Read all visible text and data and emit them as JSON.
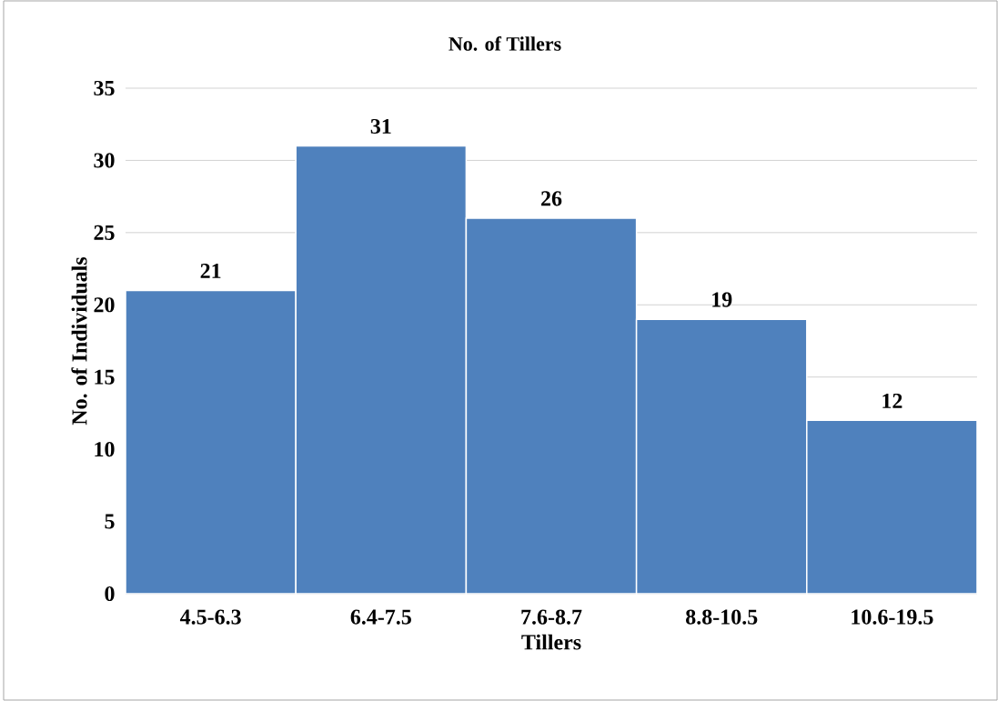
{
  "chart_data": {
    "type": "bar",
    "title": "No. of Tillers",
    "xlabel": "Tillers",
    "ylabel": "No. of Individuals",
    "categories": [
      "4.5-6.3",
      "6.4-7.5",
      "7.6-8.7",
      "8.8-10.5",
      "10.6-19.5"
    ],
    "values": [
      21,
      31,
      26,
      19,
      12
    ],
    "color": "#4f81bd",
    "ylim": [
      0,
      35
    ],
    "yticks": [
      0,
      5,
      10,
      15,
      20,
      25,
      30,
      35
    ],
    "grid": "y",
    "data_labels": true
  }
}
